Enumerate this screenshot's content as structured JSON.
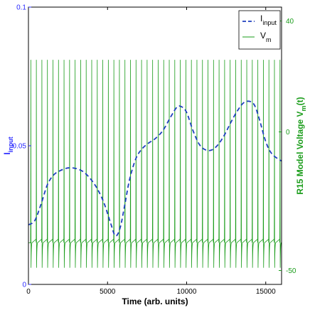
{
  "chart_data": {
    "type": "line",
    "xlabel": "Time (arb. units)",
    "ylabel_left_main": "I",
    "ylabel_left_sub": "input",
    "ylabel_right_main": "R15 Model Voltage V",
    "ylabel_right_sub": "m",
    "ylabel_right_suffix": "(t)",
    "xlim": [
      0,
      16000
    ],
    "ylim_left": [
      0,
      0.1
    ],
    "ylim_right": [
      -55,
      45
    ],
    "xticks": [
      0,
      5000,
      10000,
      15000
    ],
    "xtick_labels": [
      "0",
      "5000",
      "10000",
      "15000"
    ],
    "yticks_left": [
      0,
      0.05,
      0.1
    ],
    "ytick_labels_left": [
      "0",
      "0.05",
      "0.1"
    ],
    "yticks_right": [
      -50,
      0,
      40
    ],
    "ytick_labels_right": [
      "-50",
      "0",
      "40"
    ],
    "legend": {
      "placement": "top-right",
      "entries": [
        {
          "main": "I",
          "sub": "input"
        },
        {
          "main": "V",
          "sub": "m"
        }
      ]
    },
    "colors": {
      "input": "#1f3fbf",
      "vm": "#1a9c1a",
      "left_axis": "#2a2aff",
      "right_axis": "#1a9c1a"
    },
    "series": [
      {
        "name": "I_input",
        "style": "dashed",
        "x": [
          0,
          400,
          800,
          1200,
          1600,
          2000,
          2500,
          3000,
          3500,
          4000,
          4400,
          4800,
          5200,
          5500,
          5800,
          6100,
          6400,
          6800,
          7200,
          7600,
          8000,
          8500,
          9000,
          9400,
          9700,
          10000,
          10400,
          10800,
          11200,
          11600,
          12000,
          12400,
          12800,
          13200,
          13600,
          14000,
          14300,
          14600,
          15000,
          15400,
          16000
        ],
        "y": [
          0.0215,
          0.023,
          0.029,
          0.036,
          0.0395,
          0.041,
          0.042,
          0.0418,
          0.0405,
          0.0375,
          0.034,
          0.029,
          0.022,
          0.0175,
          0.0205,
          0.029,
          0.038,
          0.0455,
          0.049,
          0.051,
          0.0525,
          0.0555,
          0.0605,
          0.064,
          0.064,
          0.062,
          0.0555,
          0.0505,
          0.0485,
          0.0485,
          0.0505,
          0.054,
          0.0585,
          0.0625,
          0.0655,
          0.066,
          0.0645,
          0.0595,
          0.0515,
          0.047,
          0.0445
        ]
      },
      {
        "name": "V_m",
        "style": "solid",
        "spike_times": [
          150,
          500,
          850,
          1200,
          1550,
          1900,
          2250,
          2600,
          2950,
          3300,
          3650,
          4000,
          4350,
          4700,
          5050,
          5400,
          5750,
          6100,
          6450,
          6800,
          7150,
          7500,
          7850,
          8200,
          8550,
          8900,
          9250,
          9600,
          9950,
          10300,
          10650,
          11000,
          11350,
          11700,
          12050,
          12400,
          12750,
          13100,
          13450,
          13800,
          14150,
          14500,
          14850,
          15200,
          15550,
          15900
        ],
        "spike_peak": 26,
        "trough": -49,
        "plateau": -40
      }
    ]
  }
}
